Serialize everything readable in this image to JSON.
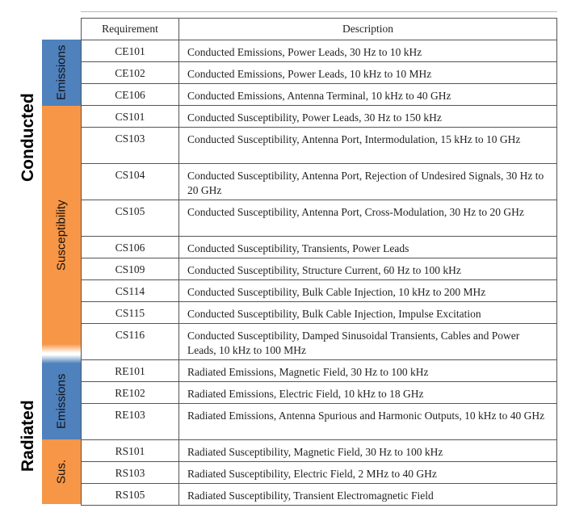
{
  "headers": {
    "requirement": "Requirement",
    "description": "Description"
  },
  "groups": {
    "conducted": "Conducted",
    "radiated": "Radiated",
    "conducted_emissions": "Emissions",
    "conducted_susceptibility": "Susceptibility",
    "radiated_emissions": "Emissions",
    "radiated_sus": "Sus."
  },
  "colors": {
    "emissions": "#4f81bd",
    "susceptibility": "#f79646"
  },
  "rows": [
    {
      "req": "CE101",
      "desc": "Conducted Emissions, Power Leads, 30 Hz to 10 kHz"
    },
    {
      "req": "CE102",
      "desc": "Conducted Emissions, Power Leads, 10 kHz to 10 MHz"
    },
    {
      "req": "CE106",
      "desc": "Conducted Emissions, Antenna Terminal, 10 kHz to 40 GHz"
    },
    {
      "req": "CS101",
      "desc": "Conducted Susceptibility, Power Leads, 30 Hz to 150 kHz"
    },
    {
      "req": "CS103",
      "desc": "Conducted Susceptibility, Antenna Port, Intermodulation, 15 kHz to 10 GHz"
    },
    {
      "req": "CS104",
      "desc": "Conducted Susceptibility, Antenna Port, Rejection of Undesired Signals, 30 Hz to 20 GHz"
    },
    {
      "req": "CS105",
      "desc": "Conducted Susceptibility, Antenna Port, Cross-Modulation, 30 Hz to 20 GHz"
    },
    {
      "req": "CS106",
      "desc": "Conducted Susceptibility, Transients, Power Leads"
    },
    {
      "req": "CS109",
      "desc": "Conducted Susceptibility, Structure Current, 60 Hz to 100 kHz"
    },
    {
      "req": "CS114",
      "desc": "Conducted Susceptibility, Bulk Cable Injection, 10 kHz to 200 MHz"
    },
    {
      "req": "CS115",
      "desc": "Conducted Susceptibility, Bulk Cable Injection, Impulse Excitation"
    },
    {
      "req": "CS116",
      "desc": "Conducted Susceptibility, Damped Sinusoidal Transients, Cables and Power Leads, 10 kHz to 100 MHz"
    },
    {
      "req": "RE101",
      "desc": "Radiated Emissions, Magnetic Field, 30 Hz to 100 kHz"
    },
    {
      "req": "RE102",
      "desc": "Radiated Emissions, Electric Field, 10 kHz to 18 GHz"
    },
    {
      "req": "RE103",
      "desc": "Radiated Emissions, Antenna Spurious and Harmonic Outputs, 10 kHz to 40 GHz"
    },
    {
      "req": "RS101",
      "desc": "Radiated Susceptibility, Magnetic Field, 30 Hz to 100 kHz"
    },
    {
      "req": "RS103",
      "desc": "Radiated Susceptibility, Electric Field, 2 MHz to 40 GHz"
    },
    {
      "req": "RS105",
      "desc": "Radiated Susceptibility, Transient Electromagnetic Field"
    }
  ]
}
